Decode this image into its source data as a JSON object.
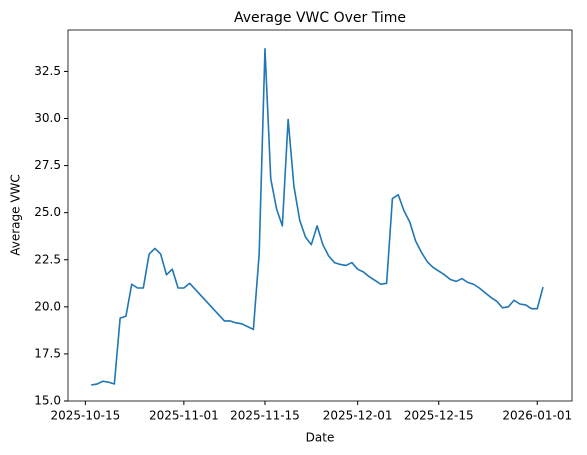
{
  "chart_data": {
    "type": "line",
    "title": "Average VWC Over Time",
    "xlabel": "Date",
    "ylabel": "Average VWC",
    "x": [
      "2025-10-16",
      "2025-10-17",
      "2025-10-18",
      "2025-10-19",
      "2025-10-20",
      "2025-10-21",
      "2025-10-22",
      "2025-10-23",
      "2025-10-24",
      "2025-10-25",
      "2025-10-26",
      "2025-10-27",
      "2025-10-28",
      "2025-10-29",
      "2025-10-30",
      "2025-10-31",
      "2025-11-01",
      "2025-11-02",
      "2025-11-08",
      "2025-11-09",
      "2025-11-10",
      "2025-11-11",
      "2025-11-12",
      "2025-11-13",
      "2025-11-14",
      "2025-11-15",
      "2025-11-16",
      "2025-11-17",
      "2025-11-18",
      "2025-11-19",
      "2025-11-20",
      "2025-11-21",
      "2025-11-22",
      "2025-11-23",
      "2025-11-24",
      "2025-11-25",
      "2025-11-26",
      "2025-11-27",
      "2025-11-28",
      "2025-11-29",
      "2025-11-30",
      "2025-12-01",
      "2025-12-02",
      "2025-12-03",
      "2025-12-04",
      "2025-12-05",
      "2025-12-06",
      "2025-12-07",
      "2025-12-08",
      "2025-12-09",
      "2025-12-10",
      "2025-12-11",
      "2025-12-12",
      "2025-12-13",
      "2025-12-14",
      "2025-12-15",
      "2025-12-16",
      "2025-12-17",
      "2025-12-18",
      "2025-12-19",
      "2025-12-20",
      "2025-12-21",
      "2025-12-22",
      "2025-12-23",
      "2025-12-24",
      "2025-12-25",
      "2025-12-26",
      "2025-12-27",
      "2025-12-28",
      "2025-12-29",
      "2025-12-30",
      "2025-12-31",
      "2026-01-01",
      "2026-01-02"
    ],
    "series": [
      {
        "name": "Average VWC",
        "color": "#1f77b4",
        "values": [
          15.85,
          15.9,
          16.05,
          16.0,
          15.9,
          19.4,
          19.5,
          21.2,
          21.0,
          21.0,
          22.8,
          23.1,
          22.8,
          21.7,
          22.0,
          21.0,
          21.0,
          21.25,
          19.25,
          19.25,
          19.15,
          19.1,
          18.95,
          18.8,
          22.8,
          33.7,
          26.8,
          25.2,
          24.3,
          29.95,
          26.4,
          24.6,
          23.7,
          23.3,
          24.3,
          23.3,
          22.7,
          22.35,
          22.25,
          22.2,
          22.35,
          22.0,
          21.85,
          21.6,
          21.4,
          21.2,
          21.25,
          25.75,
          25.95,
          25.1,
          24.5,
          23.5,
          22.9,
          22.4,
          22.1,
          21.9,
          21.7,
          21.45,
          21.35,
          21.5,
          21.3,
          21.2,
          21.0,
          20.75,
          20.5,
          20.3,
          19.95,
          20.0,
          20.35,
          20.15,
          20.1,
          19.9,
          19.9,
          21.05
        ]
      }
    ],
    "xlim": [
      "2025-10-12",
      "2026-01-07"
    ],
    "xticks": [
      "2025-10-15",
      "2025-11-01",
      "2025-11-15",
      "2025-12-01",
      "2025-12-15",
      "2026-01-01"
    ],
    "ylim": [
      15.0,
      34.7
    ],
    "yticks": [
      {
        "value": 15,
        "label": "15.0"
      },
      17.5,
      {
        "value": 20,
        "label": "20.0"
      },
      22.5,
      {
        "value": 25,
        "label": "25.0"
      },
      27.5,
      {
        "value": 30,
        "label": "30.0"
      },
      32.5
    ]
  }
}
